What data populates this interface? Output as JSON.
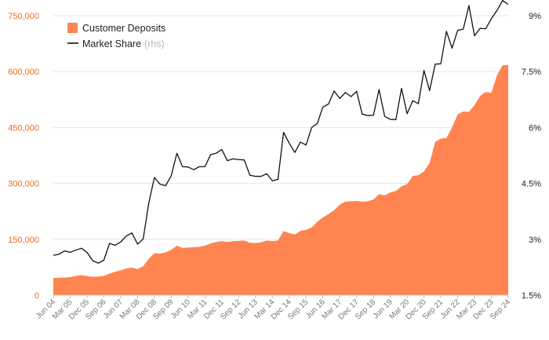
{
  "chart_data": {
    "type": "area",
    "grid": true,
    "legend_position": "top-left",
    "x_ticks": [
      "Jun 04",
      "Mar 05",
      "Dec 05",
      "Sep 06",
      "Jun 07",
      "Mar 08",
      "Dec 08",
      "Sep 09",
      "Jun 10",
      "Mar 11",
      "Dec 11",
      "Sep 12",
      "Jun 13",
      "Mar 14",
      "Dec 14",
      "Sep 15",
      "Jun 16",
      "Mar 17",
      "Dec 17",
      "Sep 18",
      "Jun 19",
      "Mar 20",
      "Dec 20",
      "Sep 21",
      "Jun 22",
      "Mar 23",
      "Dec 23",
      "Sep 24"
    ],
    "y_left": {
      "ticks": [
        "0",
        "150,000",
        "300,000",
        "450,000",
        "600,000",
        "750,000"
      ],
      "range": [
        0,
        750000
      ]
    },
    "y_right": {
      "ticks": [
        "1.5%",
        "3%",
        "4.5%",
        "6%",
        "7.5%",
        "9%"
      ],
      "range": [
        1.5,
        9
      ]
    },
    "series": [
      {
        "name": "Customer Deposits",
        "axis": "left",
        "kind": "area",
        "color": "#ff8450",
        "values": [
          46000,
          47000,
          47500,
          48500,
          52000,
          54000,
          51000,
          49500,
          50000,
          52000,
          58000,
          63000,
          67000,
          72000,
          74000,
          70000,
          78000,
          98000,
          113000,
          112000,
          115000,
          122000,
          133000,
          127000,
          128000,
          129000,
          130000,
          133000,
          139000,
          143000,
          145000,
          143000,
          145000,
          146000,
          147000,
          141000,
          140000,
          142000,
          147000,
          145000,
          147000,
          172000,
          167000,
          163000,
          173000,
          175000,
          182000,
          197000,
          209000,
          218000,
          228000,
          243000,
          251000,
          252000,
          253000,
          251000,
          252000,
          257000,
          271000,
          268000,
          276000,
          280000,
          292000,
          298000,
          320000,
          322000,
          332000,
          355000,
          412000,
          420000,
          422000,
          450000,
          485000,
          493000,
          492000,
          510000,
          535000,
          545000,
          543000,
          590000,
          617000,
          618000
        ]
      },
      {
        "name": "Market Share",
        "name_suffix": "(rhs)",
        "axis": "right",
        "kind": "line",
        "color": "#111111",
        "values": [
          2.57,
          2.6,
          2.69,
          2.65,
          2.71,
          2.76,
          2.65,
          2.43,
          2.36,
          2.44,
          2.89,
          2.84,
          2.93,
          3.09,
          3.17,
          2.87,
          3.01,
          3.98,
          4.66,
          4.48,
          4.44,
          4.71,
          5.31,
          4.95,
          4.94,
          4.87,
          4.95,
          4.95,
          5.27,
          5.31,
          5.41,
          5.11,
          5.16,
          5.14,
          5.13,
          4.72,
          4.69,
          4.69,
          4.76,
          4.57,
          4.61,
          5.87,
          5.58,
          5.33,
          5.61,
          5.53,
          6.0,
          6.11,
          6.55,
          6.63,
          6.98,
          6.78,
          6.94,
          6.83,
          6.97,
          6.36,
          6.32,
          6.33,
          7.02,
          6.3,
          6.22,
          6.21,
          7.05,
          6.37,
          6.72,
          6.64,
          7.53,
          6.99,
          7.7,
          7.71,
          8.58,
          8.13,
          8.61,
          8.64,
          9.27,
          8.46,
          8.66,
          8.65,
          8.92,
          9.14,
          9.41,
          9.3
        ]
      }
    ]
  }
}
